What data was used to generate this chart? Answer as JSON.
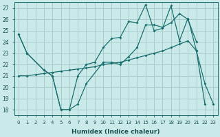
{
  "xlabel": "Humidex (Indice chaleur)",
  "bg_color": "#caeaea",
  "grid_color": "#a8cccc",
  "line_color": "#1a6e6e",
  "xlim": [
    -0.5,
    23.5
  ],
  "ylim": [
    17.5,
    27.5
  ],
  "yticks": [
    18,
    19,
    20,
    21,
    22,
    23,
    24,
    25,
    26,
    27
  ],
  "xticks": [
    0,
    1,
    2,
    3,
    4,
    5,
    6,
    7,
    8,
    9,
    10,
    11,
    12,
    13,
    14,
    15,
    16,
    17,
    18,
    19,
    20,
    21,
    22,
    23
  ],
  "series": [
    {
      "x": [
        0,
        1,
        3,
        4,
        5,
        6,
        7,
        8,
        9,
        10,
        11,
        12,
        13,
        14,
        15,
        16,
        17,
        18,
        19,
        20,
        21,
        22,
        23
      ],
      "y": [
        24.7,
        23.0,
        21.5,
        21.0,
        18.0,
        18.0,
        21.0,
        22.0,
        22.2,
        23.5,
        24.3,
        24.4,
        25.8,
        25.7,
        27.3,
        25.0,
        25.2,
        27.2,
        24.1,
        26.1,
        23.2,
        20.3,
        18.5
      ]
    },
    {
      "x": [
        0,
        1,
        3,
        4,
        5,
        6,
        7,
        8,
        10,
        11,
        12,
        13,
        14,
        15,
        16,
        17,
        18,
        19,
        20,
        21
      ],
      "y": [
        24.7,
        23.0,
        21.5,
        21.0,
        18.0,
        18.0,
        18.5,
        20.3,
        22.2,
        22.2,
        22.0,
        22.7,
        23.5,
        25.5,
        25.5,
        25.3,
        25.7,
        26.5,
        26.0,
        24.0
      ]
    },
    {
      "x": [
        0,
        1,
        2,
        3,
        4,
        5,
        6,
        7,
        8,
        9,
        10,
        11,
        12,
        13,
        14,
        15,
        16,
        17,
        18,
        19,
        20,
        21,
        22
      ],
      "y": [
        21.0,
        21.0,
        21.1,
        21.2,
        21.3,
        21.4,
        21.5,
        21.6,
        21.7,
        21.8,
        22.0,
        22.1,
        22.2,
        22.4,
        22.6,
        22.8,
        23.0,
        23.2,
        23.5,
        23.8,
        24.1,
        23.2,
        18.5
      ]
    }
  ]
}
